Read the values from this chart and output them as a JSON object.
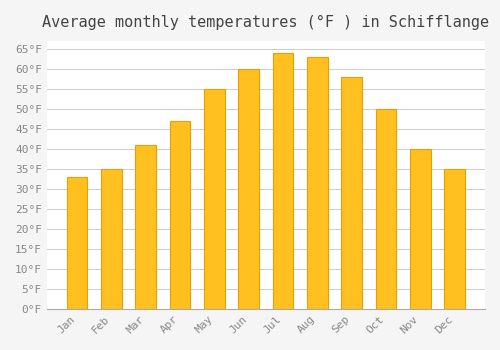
{
  "title": "Average monthly temperatures (°F ) in Schifflange",
  "categories": [
    "Jan",
    "Feb",
    "Mar",
    "Apr",
    "May",
    "Jun",
    "Jul",
    "Aug",
    "Sep",
    "Oct",
    "Nov",
    "Dec"
  ],
  "values": [
    33,
    35,
    41,
    47,
    55,
    60,
    64,
    63,
    58,
    50,
    40,
    35
  ],
  "bar_color": "#FFC020",
  "bar_edge_color": "#E8A000",
  "background_color": "#F5F5F5",
  "plot_background_color": "#FFFFFF",
  "grid_color": "#CCCCCC",
  "title_fontsize": 11,
  "tick_label_fontsize": 8,
  "ylim": [
    0,
    67
  ],
  "yticks": [
    0,
    5,
    10,
    15,
    20,
    25,
    30,
    35,
    40,
    45,
    50,
    55,
    60,
    65
  ],
  "ytick_labels": [
    "0°F",
    "5°F",
    "10°F",
    "15°F",
    "20°F",
    "25°F",
    "30°F",
    "35°F",
    "40°F",
    "45°F",
    "50°F",
    "55°F",
    "60°F",
    "65°F"
  ]
}
